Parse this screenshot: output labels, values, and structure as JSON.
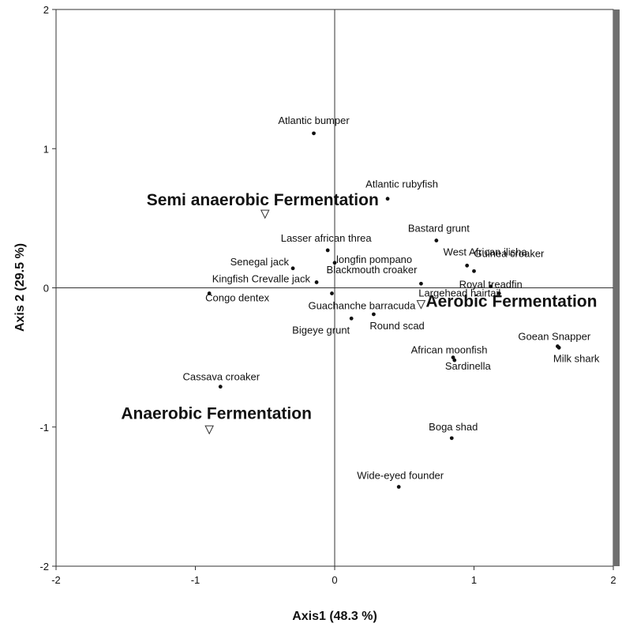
{
  "chart_data": {
    "type": "scatter",
    "xlabel": "Axis1 (48.3 %)",
    "ylabel": "Axis 2 (29.5 %)",
    "xlim": [
      -2,
      2
    ],
    "ylim": [
      -2,
      2
    ],
    "xticks": [
      -2,
      -1,
      0,
      1,
      2
    ],
    "yticks": [
      -2,
      -1,
      0,
      1,
      2
    ],
    "x_tick_labels": [
      "-2",
      "-1",
      "0",
      "1",
      "2"
    ],
    "y_tick_labels": [
      "-2",
      "-1",
      "0",
      "1",
      "2"
    ],
    "reference_lines": {
      "x": 0,
      "y": 0
    },
    "grid": false,
    "series": [
      {
        "marker": "dot",
        "points": [
          {
            "label": "Atlantic bumper",
            "x": -0.15,
            "y": 1.11
          },
          {
            "label": "Atlantic rubyfish",
            "x": 0.38,
            "y": 0.64
          },
          {
            "label": "Bastard grunt",
            "x": 0.73,
            "y": 0.34
          },
          {
            "label": "Lasser african threa",
            "x": -0.05,
            "y": 0.27
          },
          {
            "label": "longfin pompano",
            "x": 0.0,
            "y": 0.18
          },
          {
            "label": "West African ilisha",
            "x": 0.95,
            "y": 0.16
          },
          {
            "label": "Senegal jack",
            "x": -0.3,
            "y": 0.14
          },
          {
            "label": "Guinea croaker",
            "x": 1.0,
            "y": 0.12
          },
          {
            "label": "Blackmouth croaker",
            "x": 0.62,
            "y": 0.03
          },
          {
            "label": "Kingfish Crevalle jack",
            "x": -0.13,
            "y": 0.04
          },
          {
            "label": "Royal treadfin",
            "x": 1.12,
            "y": 0.01
          },
          {
            "label": "Congo dentex",
            "x": -0.9,
            "y": -0.04
          },
          {
            "label": "Guachanche barracuda",
            "x": -0.02,
            "y": -0.04
          },
          {
            "label": "Largehead hairtail",
            "x": 1.18,
            "y": -0.04
          },
          {
            "label": "Round scad",
            "x": 0.28,
            "y": -0.19
          },
          {
            "label": "Bigeye grunt",
            "x": 0.12,
            "y": -0.22
          },
          {
            "label": "Goean Snapper",
            "x": 1.6,
            "y": -0.42
          },
          {
            "label": "African moonfish",
            "x": 0.85,
            "y": -0.5
          },
          {
            "label": "Sardinella",
            "x": 0.86,
            "y": -0.52
          },
          {
            "label": "Milk shark",
            "x": 1.61,
            "y": -0.43
          },
          {
            "label": "Cassava croaker",
            "x": -0.82,
            "y": -0.71
          },
          {
            "label": "Boga shad",
            "x": 0.84,
            "y": -1.08
          },
          {
            "label": "Wide-eyed founder",
            "x": 0.46,
            "y": -1.43
          }
        ]
      },
      {
        "marker": "triangle-down",
        "points": [
          {
            "label": "Semi anaerobic Fermentation",
            "x": -0.5,
            "y": 0.53
          },
          {
            "label": "Aerobic Fermentation",
            "x": 0.62,
            "y": -0.12
          },
          {
            "label": "Anaerobic Fermentation",
            "x": -0.9,
            "y": -1.02
          }
        ]
      }
    ]
  }
}
